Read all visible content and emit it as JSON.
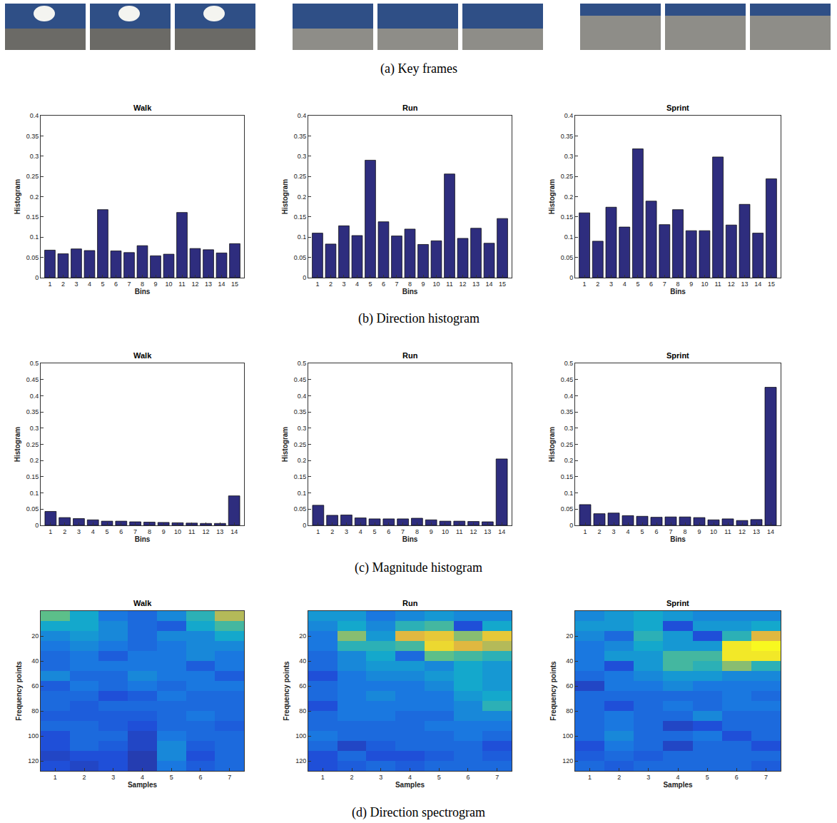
{
  "captions": [
    "(a) Key frames",
    "(b) Direction histogram",
    "(c) Magnitude histogram",
    "(d) Direction spectrogram"
  ],
  "chart_data": [
    {
      "type": "bar",
      "title": "Walk",
      "xlabel": "Bins",
      "ylabel": "Histogram",
      "color": "#2e2d7e",
      "x": [
        1,
        2,
        3,
        4,
        5,
        6,
        7,
        8,
        9,
        10,
        11,
        12,
        13,
        14,
        15
      ],
      "values": [
        0.068,
        0.059,
        0.071,
        0.067,
        0.168,
        0.066,
        0.062,
        0.079,
        0.054,
        0.058,
        0.161,
        0.072,
        0.069,
        0.061,
        0.084
      ],
      "xlim": [
        0.3,
        15.7
      ],
      "xticks": [
        1,
        2,
        3,
        4,
        5,
        6,
        7,
        8,
        9,
        10,
        11,
        12,
        13,
        14,
        15
      ],
      "ylim": [
        0,
        0.4
      ],
      "yticks": [
        0,
        0.05,
        0.1,
        0.15,
        0.2,
        0.25,
        0.3,
        0.35,
        0.4
      ]
    },
    {
      "type": "bar",
      "title": "Run",
      "xlabel": "Bins",
      "ylabel": "Histogram",
      "color": "#2e2d7e",
      "x": [
        1,
        2,
        3,
        4,
        5,
        6,
        7,
        8,
        9,
        10,
        11,
        12,
        13,
        14,
        15
      ],
      "values": [
        0.11,
        0.083,
        0.128,
        0.104,
        0.29,
        0.138,
        0.103,
        0.12,
        0.082,
        0.091,
        0.256,
        0.097,
        0.122,
        0.085,
        0.146
      ],
      "xlim": [
        0.3,
        15.7
      ],
      "xticks": [
        1,
        2,
        3,
        4,
        5,
        6,
        7,
        8,
        9,
        10,
        11,
        12,
        13,
        14,
        15
      ],
      "ylim": [
        0,
        0.4
      ],
      "yticks": [
        0,
        0.05,
        0.1,
        0.15,
        0.2,
        0.25,
        0.3,
        0.35,
        0.4
      ]
    },
    {
      "type": "bar",
      "title": "Sprint",
      "xlabel": "Bins",
      "ylabel": "Histogram",
      "color": "#2e2d7e",
      "x": [
        1,
        2,
        3,
        4,
        5,
        6,
        7,
        8,
        9,
        10,
        11,
        12,
        13,
        14,
        15
      ],
      "values": [
        0.16,
        0.09,
        0.174,
        0.125,
        0.318,
        0.189,
        0.131,
        0.168,
        0.116,
        0.116,
        0.298,
        0.13,
        0.181,
        0.11,
        0.244
      ],
      "xlim": [
        0.3,
        15.7
      ],
      "xticks": [
        1,
        2,
        3,
        4,
        5,
        6,
        7,
        8,
        9,
        10,
        11,
        12,
        13,
        14,
        15
      ],
      "ylim": [
        0,
        0.4
      ],
      "yticks": [
        0,
        0.05,
        0.1,
        0.15,
        0.2,
        0.25,
        0.3,
        0.35,
        0.4
      ]
    },
    {
      "type": "bar",
      "title": "Walk",
      "xlabel": "Bins",
      "ylabel": "Histogram",
      "color": "#2e2d7e",
      "x": [
        1,
        2,
        3,
        4,
        5,
        6,
        7,
        8,
        9,
        10,
        11,
        12,
        13,
        14
      ],
      "values": [
        0.043,
        0.024,
        0.021,
        0.017,
        0.013,
        0.013,
        0.011,
        0.01,
        0.009,
        0.008,
        0.007,
        0.006,
        0.006,
        0.091
      ],
      "xlim": [
        0.3,
        14.7
      ],
      "xticks": [
        1,
        2,
        3,
        4,
        5,
        6,
        7,
        8,
        9,
        10,
        11,
        12,
        13,
        14
      ],
      "ylim": [
        0,
        0.5
      ],
      "yticks": [
        0,
        0.05,
        0.1,
        0.15,
        0.2,
        0.25,
        0.3,
        0.35,
        0.4,
        0.45,
        0.5
      ]
    },
    {
      "type": "bar",
      "title": "Run",
      "xlabel": "Bins",
      "ylabel": "Histogram",
      "color": "#2e2d7e",
      "x": [
        1,
        2,
        3,
        4,
        5,
        6,
        7,
        8,
        9,
        10,
        11,
        12,
        13,
        14
      ],
      "values": [
        0.062,
        0.031,
        0.032,
        0.023,
        0.02,
        0.02,
        0.02,
        0.022,
        0.017,
        0.013,
        0.013,
        0.012,
        0.011,
        0.205
      ],
      "xlim": [
        0.3,
        14.7
      ],
      "xticks": [
        1,
        2,
        3,
        4,
        5,
        6,
        7,
        8,
        9,
        10,
        11,
        12,
        13,
        14
      ],
      "ylim": [
        0,
        0.5
      ],
      "yticks": [
        0,
        0.05,
        0.1,
        0.15,
        0.2,
        0.25,
        0.3,
        0.35,
        0.4,
        0.45,
        0.5
      ]
    },
    {
      "type": "bar",
      "title": "Sprint",
      "xlabel": "Bins",
      "ylabel": "Histogram",
      "color": "#2e2d7e",
      "x": [
        1,
        2,
        3,
        4,
        5,
        6,
        7,
        8,
        9,
        10,
        11,
        12,
        13,
        14
      ],
      "values": [
        0.064,
        0.036,
        0.038,
        0.03,
        0.028,
        0.025,
        0.026,
        0.026,
        0.024,
        0.017,
        0.02,
        0.015,
        0.018,
        0.426
      ],
      "xlim": [
        0.3,
        14.7
      ],
      "xticks": [
        1,
        2,
        3,
        4,
        5,
        6,
        7,
        8,
        9,
        10,
        11,
        12,
        13,
        14
      ],
      "ylim": [
        0,
        0.5
      ],
      "yticks": [
        0,
        0.05,
        0.1,
        0.15,
        0.2,
        0.25,
        0.3,
        0.35,
        0.4,
        0.45,
        0.5
      ]
    },
    {
      "type": "heatmap",
      "title": "Walk",
      "xlabel": "Samples",
      "ylabel": "Frequency points",
      "x": [
        1,
        2,
        3,
        4,
        5,
        6,
        7
      ],
      "y": [
        4,
        12,
        20,
        28,
        36,
        44,
        52,
        60,
        68,
        76,
        84,
        92,
        100,
        108,
        116,
        124
      ],
      "cells": [
        [
          0.65,
          0.5,
          0.4,
          0.35,
          0.3,
          0.3,
          0.4,
          0.25,
          0.3,
          0.3,
          0.25,
          0.3,
          0.2,
          0.2,
          0.15,
          0.2
        ],
        [
          0.5,
          0.5,
          0.45,
          0.4,
          0.35,
          0.35,
          0.3,
          0.35,
          0.3,
          0.25,
          0.25,
          0.3,
          0.3,
          0.3,
          0.2,
          0.15
        ],
        [
          0.35,
          0.4,
          0.4,
          0.35,
          0.25,
          0.35,
          0.3,
          0.3,
          0.2,
          0.3,
          0.25,
          0.25,
          0.3,
          0.25,
          0.2,
          0.2
        ],
        [
          0.3,
          0.3,
          0.3,
          0.3,
          0.35,
          0.35,
          0.4,
          0.35,
          0.25,
          0.3,
          0.25,
          0.2,
          0.15,
          0.15,
          0.1,
          0.1
        ],
        [
          0.4,
          0.25,
          0.4,
          0.35,
          0.35,
          0.35,
          0.35,
          0.3,
          0.35,
          0.3,
          0.3,
          0.3,
          0.35,
          0.4,
          0.4,
          0.35
        ],
        [
          0.55,
          0.5,
          0.4,
          0.4,
          0.4,
          0.25,
          0.35,
          0.35,
          0.3,
          0.3,
          0.35,
          0.3,
          0.3,
          0.25,
          0.2,
          0.25
        ],
        [
          0.75,
          0.6,
          0.5,
          0.4,
          0.35,
          0.35,
          0.25,
          0.35,
          0.3,
          0.3,
          0.3,
          0.25,
          0.3,
          0.3,
          0.3,
          0.3
        ]
      ],
      "zlim": [
        0,
        1
      ],
      "xlim": [
        0.5,
        7.5
      ],
      "xticks": [
        1,
        2,
        3,
        4,
        5,
        6,
        7
      ],
      "ylim": [
        128,
        0
      ],
      "yticks": [
        20,
        40,
        60,
        80,
        100,
        120
      ]
    },
    {
      "type": "heatmap",
      "title": "Run",
      "xlabel": "Samples",
      "ylabel": "Frequency points",
      "x": [
        1,
        2,
        3,
        4,
        5,
        6,
        7
      ],
      "y": [
        4,
        12,
        20,
        28,
        36,
        44,
        52,
        60,
        68,
        76,
        84,
        92,
        100,
        108,
        116,
        124
      ],
      "cells": [
        [
          0.45,
          0.4,
          0.35,
          0.35,
          0.3,
          0.3,
          0.2,
          0.3,
          0.3,
          0.2,
          0.3,
          0.3,
          0.35,
          0.3,
          0.2,
          0.2
        ],
        [
          0.45,
          0.5,
          0.7,
          0.55,
          0.4,
          0.4,
          0.35,
          0.35,
          0.35,
          0.35,
          0.35,
          0.3,
          0.3,
          0.15,
          0.3,
          0.25
        ],
        [
          0.35,
          0.4,
          0.45,
          0.55,
          0.5,
          0.45,
          0.4,
          0.35,
          0.4,
          0.35,
          0.35,
          0.3,
          0.3,
          0.25,
          0.2,
          0.3
        ],
        [
          0.4,
          0.55,
          0.8,
          0.6,
          0.3,
          0.45,
          0.4,
          0.35,
          0.35,
          0.35,
          0.3,
          0.3,
          0.3,
          0.3,
          0.2,
          0.25
        ],
        [
          0.45,
          0.6,
          0.85,
          0.9,
          0.65,
          0.4,
          0.45,
          0.4,
          0.35,
          0.35,
          0.3,
          0.35,
          0.3,
          0.3,
          0.25,
          0.3
        ],
        [
          0.4,
          0.2,
          0.7,
          0.8,
          0.6,
          0.5,
          0.5,
          0.5,
          0.45,
          0.4,
          0.4,
          0.35,
          0.35,
          0.3,
          0.3,
          0.3
        ],
        [
          0.4,
          0.5,
          0.85,
          0.75,
          0.55,
          0.45,
          0.45,
          0.45,
          0.5,
          0.55,
          0.4,
          0.35,
          0.3,
          0.2,
          0.25,
          0.3
        ]
      ],
      "zlim": [
        0,
        1
      ],
      "xlim": [
        0.5,
        7.5
      ],
      "xticks": [
        1,
        2,
        3,
        4,
        5,
        6,
        7
      ],
      "ylim": [
        128,
        0
      ],
      "yticks": [
        20,
        40,
        60,
        80,
        100,
        120
      ]
    },
    {
      "type": "heatmap",
      "title": "Sprint",
      "xlabel": "Samples",
      "ylabel": "Frequency points",
      "x": [
        1,
        2,
        3,
        4,
        5,
        6,
        7
      ],
      "y": [
        4,
        12,
        20,
        28,
        36,
        44,
        52,
        60,
        68,
        76,
        84,
        92,
        100,
        108,
        116,
        124
      ],
      "cells": [
        [
          0.4,
          0.45,
          0.4,
          0.35,
          0.35,
          0.35,
          0.3,
          0.15,
          0.3,
          0.3,
          0.3,
          0.3,
          0.3,
          0.2,
          0.25,
          0.3
        ],
        [
          0.45,
          0.45,
          0.3,
          0.4,
          0.45,
          0.2,
          0.35,
          0.35,
          0.3,
          0.2,
          0.35,
          0.35,
          0.4,
          0.35,
          0.3,
          0.25
        ],
        [
          0.5,
          0.5,
          0.55,
          0.5,
          0.45,
          0.45,
          0.4,
          0.35,
          0.3,
          0.3,
          0.3,
          0.3,
          0.3,
          0.3,
          0.25,
          0.3
        ],
        [
          0.45,
          0.2,
          0.45,
          0.45,
          0.6,
          0.6,
          0.45,
          0.4,
          0.3,
          0.35,
          0.3,
          0.15,
          0.3,
          0.15,
          0.3,
          0.3
        ],
        [
          0.4,
          0.45,
          0.2,
          0.45,
          0.6,
          0.55,
          0.45,
          0.35,
          0.3,
          0.3,
          0.4,
          0.2,
          0.35,
          0.3,
          0.3,
          0.3
        ],
        [
          0.4,
          0.45,
          0.55,
          0.95,
          0.95,
          0.7,
          0.4,
          0.35,
          0.35,
          0.35,
          0.3,
          0.3,
          0.2,
          0.3,
          0.3,
          0.3
        ],
        [
          0.4,
          0.5,
          0.8,
          1.0,
          0.95,
          0.55,
          0.4,
          0.35,
          0.3,
          0.35,
          0.3,
          0.3,
          0.3,
          0.2,
          0.3,
          0.25
        ]
      ],
      "zlim": [
        0,
        1
      ],
      "xlim": [
        0.5,
        7.5
      ],
      "xticks": [
        1,
        2,
        3,
        4,
        5,
        6,
        7
      ],
      "ylim": [
        128,
        0
      ],
      "yticks": [
        20,
        40,
        60,
        80,
        100,
        120
      ]
    }
  ]
}
